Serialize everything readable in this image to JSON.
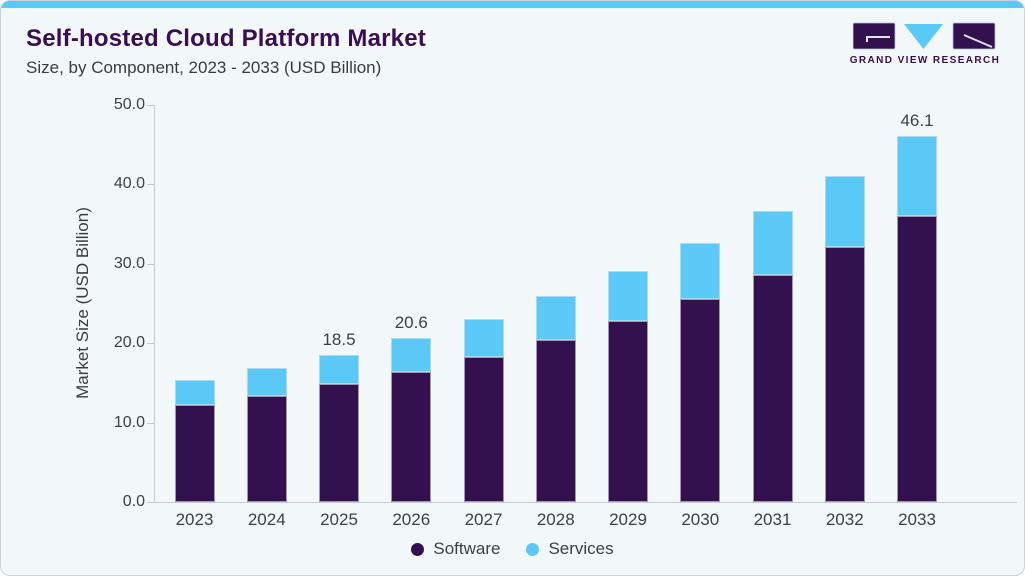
{
  "theme": {
    "card_bg": "#f2f7fa",
    "card_border": "#ccd2d8",
    "accent_blue": "#5bc9f5",
    "brand_purple": "#33114e",
    "title_color": "#3a0d54",
    "text_color": "#3d4046",
    "axis_line_color": "#c6cbd2"
  },
  "header": {
    "title": "Self-hosted Cloud Platform Market",
    "subtitle": "Size, by Component, 2023 - 2033 (USD Billion)",
    "logo_text": "GRAND VIEW RESEARCH"
  },
  "chart_data": {
    "type": "bar",
    "stacked": true,
    "title": "Self-hosted Cloud Platform Market Size, by Component, 2023 - 2033 (USD Billion)",
    "categories": [
      "2023",
      "2024",
      "2025",
      "2026",
      "2027",
      "2028",
      "2029",
      "2030",
      "2031",
      "2032",
      "2033"
    ],
    "series": [
      {
        "name": "Software",
        "color": "#33114e",
        "values": [
          12.2,
          13.4,
          14.8,
          16.4,
          18.3,
          20.4,
          22.8,
          25.6,
          28.6,
          32.1,
          36.0
        ]
      },
      {
        "name": "Services",
        "color": "#5bc9f5",
        "values": [
          3.2,
          3.5,
          3.7,
          4.2,
          4.8,
          5.5,
          6.3,
          7.0,
          8.0,
          9.0,
          10.1
        ]
      }
    ],
    "totals": [
      15.4,
      16.9,
      18.5,
      20.6,
      23.1,
      25.9,
      29.1,
      32.6,
      36.6,
      41.1,
      46.1
    ],
    "bar_labels": {
      "2025": "18.5",
      "2026": "20.6",
      "2033": "46.1"
    },
    "ylabel": "Market Size (USD Billion)",
    "ylim": [
      0,
      50
    ],
    "yticks": [
      "0.0",
      "10.0",
      "20.0",
      "30.0",
      "40.0",
      "50.0"
    ],
    "grid": false,
    "legend": {
      "position": "bottom-center",
      "entries": [
        "Software",
        "Services"
      ]
    }
  }
}
